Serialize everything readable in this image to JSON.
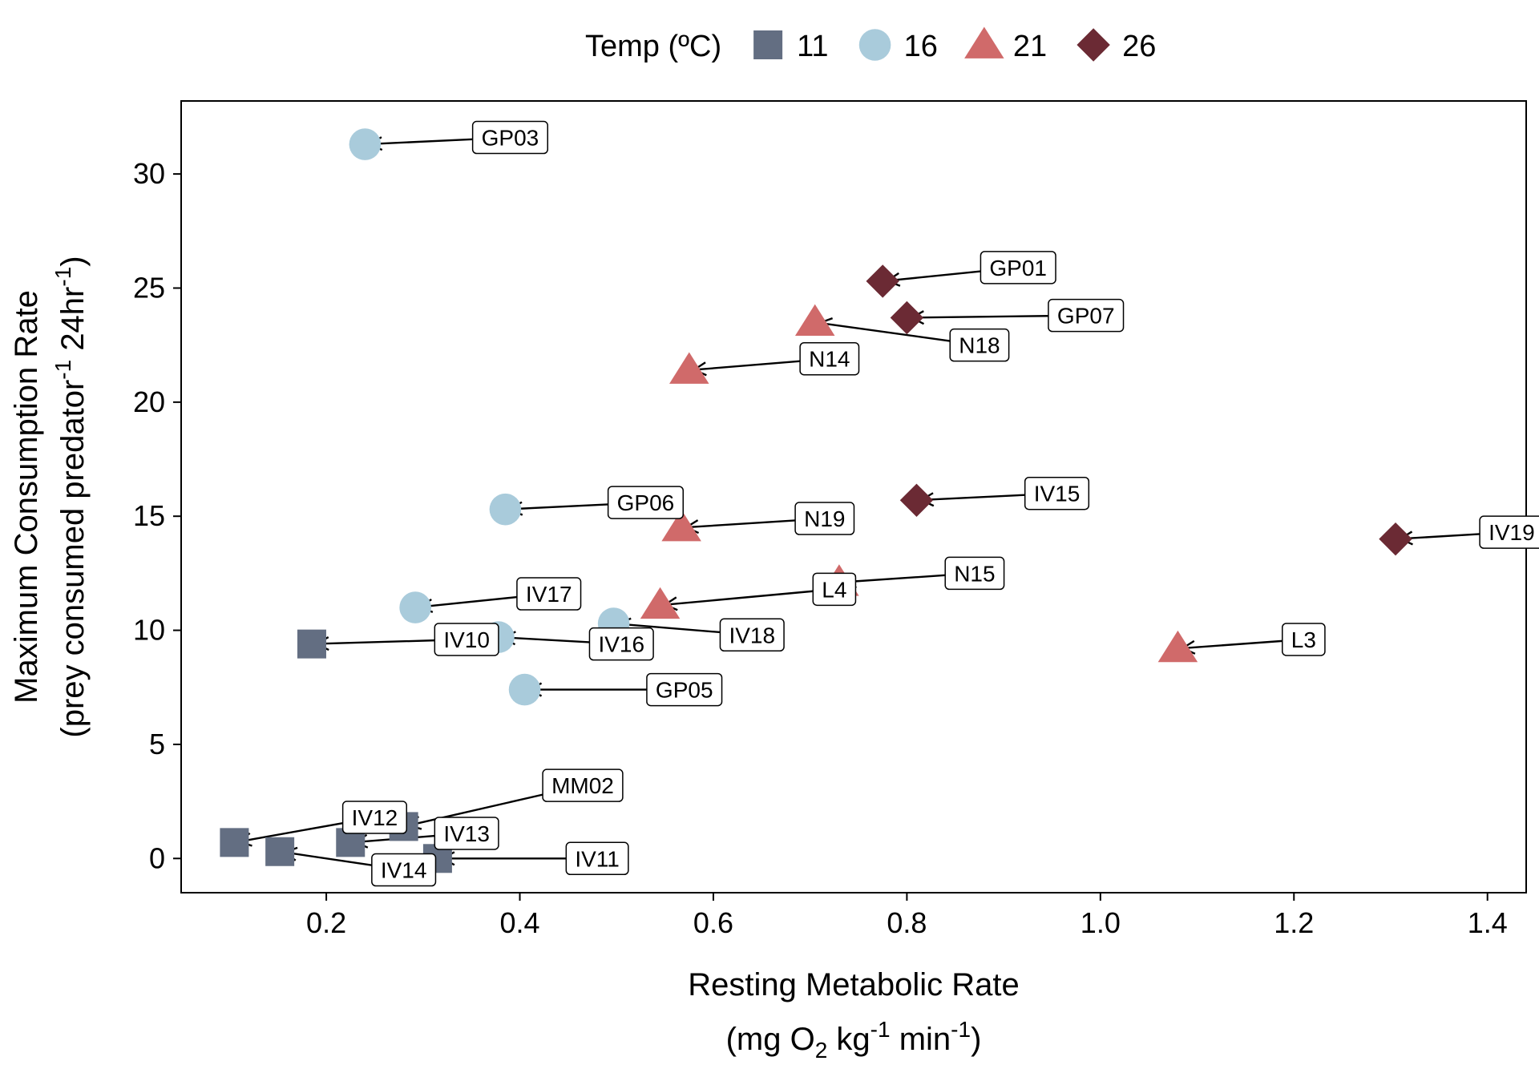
{
  "chart_data": {
    "type": "scatter",
    "xlabel": "Resting Metabolic Rate",
    "xlabel_unit": {
      "pre": "(mg O",
      "sub": "2",
      "mid1": " kg",
      "sup1": "-1",
      "mid2": " min",
      "sup2": "-1",
      "post": ")"
    },
    "ylabel": "Maximum Consumption Rate",
    "ylabel_unit": {
      "pre": "(prey consumed predator",
      "sup1": "-1",
      "mid": " 24hr",
      "sup2": "-1",
      "post": ")"
    },
    "xlim": [
      0.05,
      1.44
    ],
    "ylim": [
      -1.5,
      33.2
    ],
    "x_ticks": [
      0.2,
      0.4,
      0.6,
      0.8,
      1.0,
      1.2,
      1.4
    ],
    "x_tick_labels": [
      "0.2",
      "0.4",
      "0.6",
      "0.8",
      "1.0",
      "1.2",
      "1.4"
    ],
    "y_ticks": [
      0,
      5,
      10,
      15,
      20,
      25,
      30
    ],
    "y_tick_labels": [
      "0",
      "5",
      "10",
      "15",
      "20",
      "25",
      "30"
    ],
    "grid": false,
    "legend": {
      "title": "Temp (ºC)",
      "placement": "top",
      "entries": [
        {
          "label": "11",
          "shape": "square",
          "color": "#636e82"
        },
        {
          "label": "16",
          "shape": "circle",
          "color": "#a9cbdb"
        },
        {
          "label": "21",
          "shape": "triangle",
          "color": "#d06a6a"
        },
        {
          "label": "26",
          "shape": "diamond",
          "color": "#6b2a34"
        }
      ]
    },
    "series": [
      {
        "name": "11",
        "shape": "square",
        "color": "#636e82",
        "points": [
          {
            "id": "IV10",
            "x": 0.185,
            "y": 9.4,
            "lx": 0.345,
            "ly": 9.6
          },
          {
            "id": "IV12",
            "x": 0.105,
            "y": 0.7,
            "lx": 0.25,
            "ly": 1.8
          },
          {
            "id": "IV14",
            "x": 0.152,
            "y": 0.3,
            "lx": 0.28,
            "ly": -0.5
          },
          {
            "id": "IV13",
            "x": 0.225,
            "y": 0.7,
            "lx": 0.345,
            "ly": 1.1
          },
          {
            "id": "MM02",
            "x": 0.28,
            "y": 1.4,
            "lx": 0.465,
            "ly": 3.2
          },
          {
            "id": "IV11",
            "x": 0.315,
            "y": 0.0,
            "lx": 0.48,
            "ly": 0.0
          }
        ]
      },
      {
        "name": "16",
        "shape": "circle",
        "color": "#a9cbdb",
        "points": [
          {
            "id": "GP03",
            "x": 0.24,
            "y": 31.3,
            "lx": 0.39,
            "ly": 31.6
          },
          {
            "id": "IV17",
            "x": 0.292,
            "y": 11.0,
            "lx": 0.43,
            "ly": 11.6
          },
          {
            "id": "GP06",
            "x": 0.385,
            "y": 15.3,
            "lx": 0.53,
            "ly": 15.6
          },
          {
            "id": "IV16",
            "x": 0.378,
            "y": 9.7,
            "lx": 0.505,
            "ly": 9.4
          },
          {
            "id": "IV18",
            "x": 0.497,
            "y": 10.3,
            "lx": 0.64,
            "ly": 9.8
          },
          {
            "id": "GP05",
            "x": 0.405,
            "y": 7.4,
            "lx": 0.57,
            "ly": 7.4
          }
        ]
      },
      {
        "name": "21",
        "shape": "triangle",
        "color": "#d06a6a",
        "points": [
          {
            "id": "N14",
            "x": 0.575,
            "y": 21.4,
            "lx": 0.72,
            "ly": 21.9
          },
          {
            "id": "N18",
            "x": 0.705,
            "y": 23.5,
            "lx": 0.875,
            "ly": 22.5
          },
          {
            "id": "N19",
            "x": 0.567,
            "y": 14.5,
            "lx": 0.715,
            "ly": 14.9
          },
          {
            "id": "L4",
            "x": 0.545,
            "y": 11.1,
            "lx": 0.725,
            "ly": 11.8
          },
          {
            "id": "N15",
            "x": 0.73,
            "y": 12.1,
            "lx": 0.87,
            "ly": 12.5
          },
          {
            "id": "L3",
            "x": 1.08,
            "y": 9.2,
            "lx": 1.21,
            "ly": 9.6
          }
        ]
      },
      {
        "name": "26",
        "shape": "diamond",
        "color": "#6b2a34",
        "points": [
          {
            "id": "GP01",
            "x": 0.775,
            "y": 25.3,
            "lx": 0.915,
            "ly": 25.9
          },
          {
            "id": "GP07",
            "x": 0.8,
            "y": 23.7,
            "lx": 0.985,
            "ly": 23.8
          },
          {
            "id": "IV15",
            "x": 0.81,
            "y": 15.7,
            "lx": 0.955,
            "ly": 16.0
          },
          {
            "id": "IV19",
            "x": 1.305,
            "y": 14.0,
            "lx": 1.425,
            "ly": 14.3
          }
        ]
      }
    ]
  }
}
